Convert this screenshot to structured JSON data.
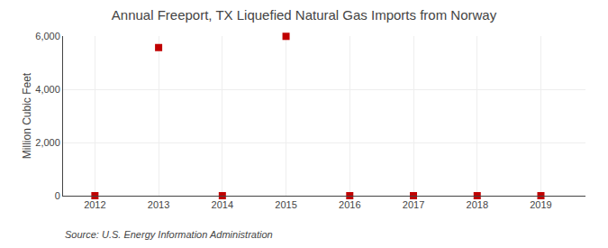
{
  "chart_data": {
    "type": "scatter",
    "title": "Annual Freeport, TX Liquefied Natural Gas Imports from Norway",
    "y_label": "Million Cubic Feet",
    "annotations": [
      "Source: U.S. Energy Information Administration"
    ],
    "x": [
      2012,
      2013,
      2014,
      2015,
      2016,
      2017,
      2018,
      2019
    ],
    "values": [
      0,
      5568,
      0,
      5990,
      0,
      0,
      0,
      0
    ],
    "color": "#c00000",
    "marker": "square",
    "xlim": [
      2011.5,
      2019.7
    ],
    "xticks": [
      2012,
      2013,
      2014,
      2015,
      2016,
      2017,
      2018,
      2019
    ],
    "ylim": [
      0,
      6000
    ],
    "yticks": [
      0,
      {
        "value": 2000,
        "label": "2,000"
      },
      {
        "value": 4000,
        "label": "4,000"
      },
      {
        "value": 6000,
        "label": "6,000"
      }
    ],
    "grid": true
  }
}
